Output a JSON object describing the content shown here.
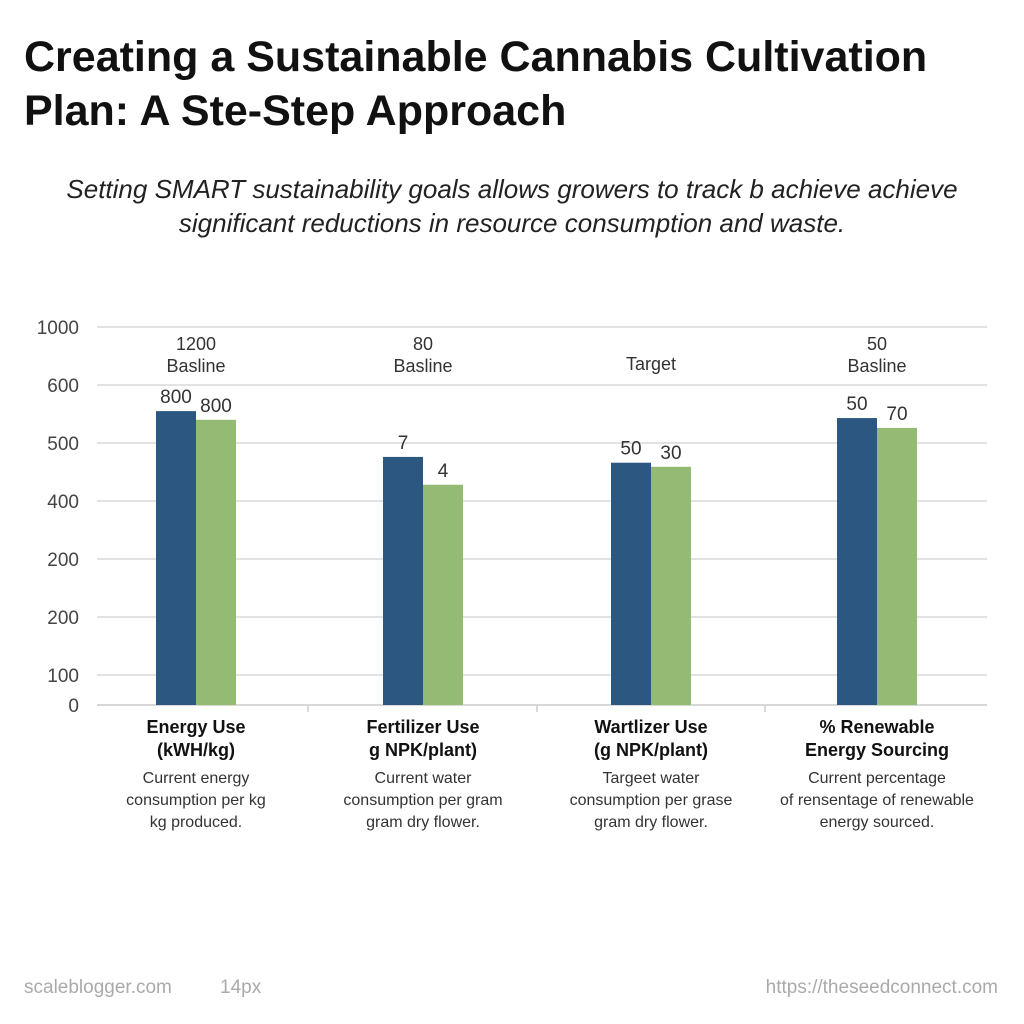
{
  "title": "Creating a Sustainable Cannabis Cultivation Plan: A Ste-Step Approach",
  "subtitle": "Setting SMART sustainability goals allows growers to track b achieve achieve significant reductions in resource consumption and waste.",
  "chart_data": {
    "type": "bar",
    "title": "",
    "yticks": [
      "1000",
      "600",
      "500",
      "400",
      "200",
      "200",
      "100",
      "0"
    ],
    "categories": [
      {
        "title1": "Energy Use",
        "title2": "(kWH/kg)",
        "desc": [
          "Current energy",
          "consumption per kg",
          "kg produced."
        ],
        "annotation": [
          "1200",
          "Basline"
        ]
      },
      {
        "title1": "Fertilizer Use",
        "title2": "g NPK/plant)",
        "desc": [
          "Current water",
          "consumption per gram",
          "gram dry flower."
        ],
        "annotation": [
          "80",
          "Basline"
        ]
      },
      {
        "title1": "Wartlizer Use",
        "title2": "(g NPK/plant)",
        "desc": [
          "Targeet water",
          "consumption per grase",
          "gram dry flower."
        ],
        "annotation": [
          "",
          "Target"
        ]
      },
      {
        "title1": "% Renewable",
        "title2": "Energy Sourcing",
        "desc": [
          "Current percentage",
          "of rensentage of renewable",
          "energy sourced."
        ],
        "annotation": [
          "50",
          "Basline"
        ]
      }
    ],
    "series": [
      {
        "color": "#2b5780",
        "values": [
          555,
          476,
          466,
          543
        ],
        "labels": [
          "800",
          "7",
          "50",
          "50"
        ]
      },
      {
        "color": "#93bb74",
        "values": [
          540,
          428,
          459,
          526
        ],
        "labels": [
          "800",
          "4",
          "30",
          "70"
        ]
      }
    ],
    "grid": true,
    "legend": "none"
  },
  "footer": {
    "left": "scaleblogger.com",
    "size": "14px",
    "right": "https://theseedconnect.com"
  }
}
